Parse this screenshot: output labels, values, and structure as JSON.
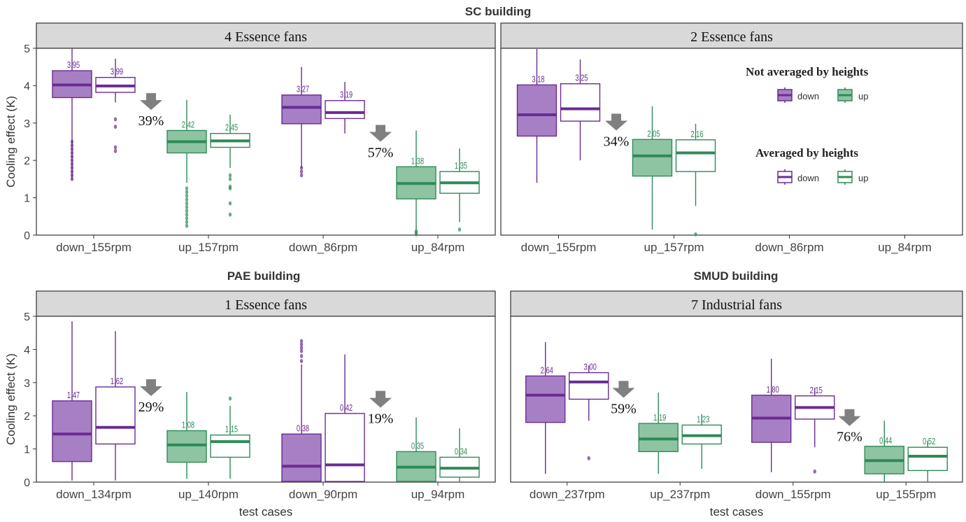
{
  "colors": {
    "down": "#6a2c91",
    "down_fill": "#a67fc4",
    "up": "#2e8b57",
    "up_fill": "#8fc4a3",
    "strip": "#d9d9d9",
    "arrow": "#808080"
  },
  "legend": {
    "title_not_avg": "Not averaged by heights",
    "title_avg": "Averaged by heights",
    "label_down": "down",
    "label_up": "up"
  },
  "chart_data": [
    {
      "type": "box",
      "title": "SC building",
      "strip": "4 Essence fans",
      "ylabel": "Cooling effect (K)",
      "xlabel": "",
      "ylim": [
        0,
        5
      ],
      "yticks": [
        "0",
        "1",
        "2",
        "3",
        "4",
        "5"
      ],
      "categories": [
        "down_155rpm",
        "up_157rpm",
        "down_86rpm",
        "up_84rpm"
      ],
      "boxes": [
        {
          "cat": 0,
          "off": -1,
          "dir": "down",
          "avg": false,
          "min": 1.5,
          "q1": 3.68,
          "med": 4.02,
          "q3": 4.4,
          "max": 5.0,
          "mean": "3.95",
          "outliers": [
            1.5,
            1.6,
            1.7,
            1.8,
            1.9,
            2.0,
            2.1,
            2.2,
            2.3,
            2.4,
            2.5
          ]
        },
        {
          "cat": 0,
          "off": 1,
          "dir": "down",
          "avg": true,
          "min": 3.55,
          "q1": 3.82,
          "med": 3.99,
          "q3": 4.22,
          "max": 4.72,
          "mean": "3.99",
          "outliers": [
            2.25,
            2.35,
            2.9,
            3.1
          ]
        },
        {
          "cat": 1,
          "off": -1,
          "dir": "up",
          "avg": false,
          "min": 1.4,
          "q1": 2.2,
          "med": 2.5,
          "q3": 2.8,
          "max": 3.62,
          "mean": "2.42",
          "outliers": [
            0.25,
            0.35,
            0.45,
            0.55,
            0.65,
            0.75,
            0.85,
            0.95,
            1.05,
            1.15,
            1.25
          ]
        },
        {
          "cat": 1,
          "off": 1,
          "dir": "up",
          "avg": true,
          "min": 1.8,
          "q1": 2.35,
          "med": 2.52,
          "q3": 2.72,
          "max": 3.22,
          "mean": "2.45",
          "outliers": [
            0.55,
            0.85,
            1.25,
            1.3,
            1.5,
            1.6
          ]
        },
        {
          "cat": 2,
          "off": -1,
          "dir": "down",
          "avg": false,
          "min": 1.8,
          "q1": 2.98,
          "med": 3.42,
          "q3": 3.75,
          "max": 4.5,
          "mean": "3.27",
          "outliers": [
            1.6,
            1.7,
            1.8
          ]
        },
        {
          "cat": 2,
          "off": 1,
          "dir": "down",
          "avg": true,
          "min": 2.72,
          "q1": 3.12,
          "med": 3.28,
          "q3": 3.6,
          "max": 4.1,
          "mean": "3.19",
          "outliers": []
        },
        {
          "cat": 3,
          "off": -1,
          "dir": "up",
          "avg": false,
          "min": 0.12,
          "q1": 0.97,
          "med": 1.38,
          "q3": 1.83,
          "max": 2.8,
          "mean": "1.38",
          "outliers": [
            0.02,
            0.06,
            0.1
          ]
        },
        {
          "cat": 3,
          "off": 1,
          "dir": "up",
          "avg": true,
          "min": 0.35,
          "q1": 1.12,
          "med": 1.4,
          "q3": 1.7,
          "max": 2.32,
          "mean": "1.35",
          "outliers": [
            0.15
          ]
        }
      ],
      "arrows": [
        {
          "pos": 0.5,
          "y": 3.8,
          "label": "39%"
        },
        {
          "pos": 2.5,
          "y": 2.95,
          "label": "57%"
        }
      ]
    },
    {
      "type": "box",
      "title": "",
      "strip": "2 Essence fans",
      "ylabel": "",
      "xlabel": "",
      "ylim": [
        0,
        5
      ],
      "yticks": [],
      "categories": [
        "down_155rpm",
        "up_157rpm",
        "down_86rpm",
        "up_84rpm"
      ],
      "boxes": [
        {
          "cat": 0,
          "off": -1,
          "dir": "down",
          "avg": false,
          "min": 1.4,
          "q1": 2.65,
          "med": 3.22,
          "q3": 4.02,
          "max": 4.98,
          "mean": "3.18",
          "outliers": []
        },
        {
          "cat": 0,
          "off": 1,
          "dir": "down",
          "avg": true,
          "min": 2.0,
          "q1": 3.05,
          "med": 3.38,
          "q3": 4.05,
          "max": 4.7,
          "mean": "3.25",
          "outliers": []
        },
        {
          "cat": 1,
          "off": -1,
          "dir": "up",
          "avg": false,
          "min": 0.15,
          "q1": 1.58,
          "med": 2.12,
          "q3": 2.56,
          "max": 3.45,
          "mean": "2.05",
          "outliers": []
        },
        {
          "cat": 1,
          "off": 1,
          "dir": "up",
          "avg": true,
          "min": 0.78,
          "q1": 1.7,
          "med": 2.2,
          "q3": 2.55,
          "max": 2.98,
          "mean": "2.16",
          "outliers": [
            0.02
          ]
        }
      ],
      "arrows": [
        {
          "pos": 0.5,
          "y": 3.25,
          "label": "34%"
        }
      ]
    },
    {
      "type": "box",
      "title": "PAE building",
      "strip": "1 Essence fans",
      "ylabel": "Cooling effect (K)",
      "xlabel": "test cases",
      "ylim": [
        0,
        5
      ],
      "yticks": [
        "0",
        "1",
        "2",
        "3",
        "4",
        "5"
      ],
      "categories": [
        "down_134rpm",
        "up_140rpm",
        "down_90rpm",
        "up_94rpm"
      ],
      "boxes": [
        {
          "cat": 0,
          "off": -1,
          "dir": "down",
          "avg": false,
          "min": 0.05,
          "q1": 0.62,
          "med": 1.45,
          "q3": 2.45,
          "max": 4.85,
          "mean": "1.47",
          "outliers": []
        },
        {
          "cat": 0,
          "off": 1,
          "dir": "down",
          "avg": true,
          "min": 0.05,
          "q1": 1.15,
          "med": 1.65,
          "q3": 2.87,
          "max": 4.55,
          "mean": "1.62",
          "outliers": []
        },
        {
          "cat": 1,
          "off": -1,
          "dir": "up",
          "avg": false,
          "min": 0.1,
          "q1": 0.6,
          "med": 1.12,
          "q3": 1.55,
          "max": 2.72,
          "mean": "1.08",
          "outliers": []
        },
        {
          "cat": 1,
          "off": 1,
          "dir": "up",
          "avg": true,
          "min": 0.1,
          "q1": 0.75,
          "med": 1.22,
          "q3": 1.42,
          "max": 2.3,
          "mean": "1.15",
          "outliers": [
            2.52
          ]
        },
        {
          "cat": 2,
          "off": -1,
          "dir": "down",
          "avg": false,
          "min": 0.0,
          "q1": 0.02,
          "med": 0.48,
          "q3": 1.45,
          "max": 3.55,
          "mean": "0.38",
          "outliers": [
            3.65,
            3.8,
            3.95,
            4.05,
            4.15,
            4.25
          ]
        },
        {
          "cat": 2,
          "off": 1,
          "dir": "down",
          "avg": true,
          "min": 0.0,
          "q1": 0.02,
          "med": 0.52,
          "q3": 2.07,
          "max": 3.85,
          "mean": "0.42",
          "outliers": []
        },
        {
          "cat": 3,
          "off": -1,
          "dir": "up",
          "avg": false,
          "min": 0.0,
          "q1": 0.02,
          "med": 0.45,
          "q3": 0.92,
          "max": 1.95,
          "mean": "0.35",
          "outliers": []
        },
        {
          "cat": 3,
          "off": 1,
          "dir": "up",
          "avg": true,
          "min": 0.0,
          "q1": 0.15,
          "med": 0.42,
          "q3": 0.75,
          "max": 1.62,
          "mean": "0.34",
          "outliers": []
        }
      ],
      "arrows": [
        {
          "pos": 0.5,
          "y": 3.1,
          "label": "29%"
        },
        {
          "pos": 2.5,
          "y": 2.75,
          "label": "19%"
        }
      ]
    },
    {
      "type": "box",
      "title": "SMUD building",
      "strip": "7 Industrial fans",
      "ylabel": "",
      "xlabel": "test cases",
      "ylim": [
        0,
        5
      ],
      "yticks": [],
      "categories": [
        "down_237rpm",
        "up_237rpm",
        "down_155rpm",
        "up_155rpm"
      ],
      "boxes": [
        {
          "cat": 0,
          "off": -1,
          "dir": "down",
          "avg": false,
          "min": 0.25,
          "q1": 1.8,
          "med": 2.62,
          "q3": 3.2,
          "max": 4.22,
          "mean": "2.64",
          "outliers": []
        },
        {
          "cat": 0,
          "off": 1,
          "dir": "down",
          "avg": true,
          "min": 1.85,
          "q1": 2.5,
          "med": 3.02,
          "q3": 3.3,
          "max": 3.52,
          "mean": "3.00",
          "outliers": [
            0.72
          ]
        },
        {
          "cat": 1,
          "off": -1,
          "dir": "up",
          "avg": false,
          "min": 0.25,
          "q1": 0.92,
          "med": 1.3,
          "q3": 1.77,
          "max": 2.7,
          "mean": "1.19",
          "outliers": []
        },
        {
          "cat": 1,
          "off": 1,
          "dir": "up",
          "avg": true,
          "min": 0.4,
          "q1": 1.15,
          "med": 1.4,
          "q3": 1.72,
          "max": 2.05,
          "mean": "1.23",
          "outliers": []
        },
        {
          "cat": 2,
          "off": -1,
          "dir": "down",
          "avg": false,
          "min": 0.3,
          "q1": 1.2,
          "med": 1.93,
          "q3": 2.62,
          "max": 3.72,
          "mean": "1.80",
          "outliers": []
        },
        {
          "cat": 2,
          "off": 1,
          "dir": "down",
          "avg": true,
          "min": 1.05,
          "q1": 1.9,
          "med": 2.25,
          "q3": 2.6,
          "max": 2.85,
          "mean": "2.15",
          "outliers": [
            0.32
          ]
        },
        {
          "cat": 3,
          "off": -1,
          "dir": "up",
          "avg": false,
          "min": 0.0,
          "q1": 0.25,
          "med": 0.65,
          "q3": 1.08,
          "max": 1.85,
          "mean": "0.44",
          "outliers": []
        },
        {
          "cat": 3,
          "off": 1,
          "dir": "up",
          "avg": true,
          "min": 0.0,
          "q1": 0.35,
          "med": 0.78,
          "q3": 1.05,
          "max": 1.25,
          "mean": "0.52",
          "outliers": []
        }
      ],
      "arrows": [
        {
          "pos": 0.5,
          "y": 3.05,
          "label": "59%"
        },
        {
          "pos": 2.5,
          "y": 2.2,
          "label": "76%"
        }
      ]
    }
  ]
}
